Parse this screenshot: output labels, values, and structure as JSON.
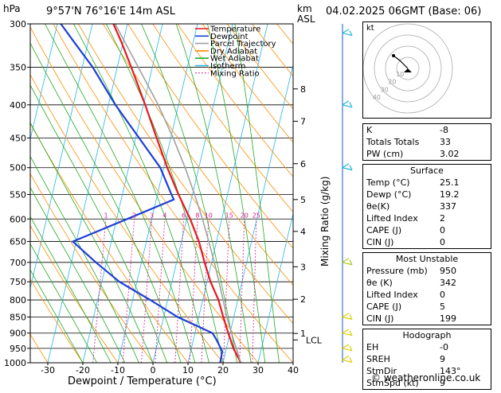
{
  "header": {
    "hpa_unit": "hPa",
    "location": "9°57'N  76°16'E  14m  ASL",
    "km_unit": "km",
    "asl_unit": "ASL",
    "datetime": "04.02.2025  06GMT  (Base: 06)"
  },
  "chart_data": {
    "type": "line",
    "xlabel": "Dewpoint / Temperature (°C)",
    "ylabel_right": "Mixing Ratio (g/kg)",
    "xlim": [
      -35,
      40
    ],
    "ylim_hpa": [
      1000,
      300
    ],
    "x_ticks": [
      "-30",
      "-20",
      "-10",
      "0",
      "10",
      "20",
      "30",
      "40"
    ],
    "pressure_ticks": [
      "300",
      "350",
      "400",
      "450",
      "500",
      "550",
      "600",
      "650",
      "700",
      "750",
      "800",
      "850",
      "900",
      "950",
      "1000"
    ],
    "km_ticks": [
      {
        "km": "8",
        "p": 378
      },
      {
        "km": "7",
        "p": 424
      },
      {
        "km": "6",
        "p": 493
      },
      {
        "km": "5",
        "p": 560
      },
      {
        "km": "4",
        "p": 627
      },
      {
        "km": "3",
        "p": 711
      },
      {
        "km": "2",
        "p": 798
      },
      {
        "km": "1",
        "p": 901
      }
    ],
    "lcl_label": "LCL",
    "lcl_p": 922,
    "mixing_ratio_labels": [
      "1",
      "2",
      "3",
      "4",
      "6",
      "8",
      "10",
      "15",
      "20",
      "25"
    ],
    "legend": [
      {
        "label": "Temperature",
        "color": "#e8191e"
      },
      {
        "label": "Dewpoint",
        "color": "#1e3fd8"
      },
      {
        "label": "Parcel Trajectory",
        "color": "#a0a0a0"
      },
      {
        "label": "Dry Adiabat",
        "color": "#ff8c00"
      },
      {
        "label": "Wet Adiabat",
        "color": "#22aa22"
      },
      {
        "label": "Isotherm",
        "color": "#22b8e8"
      },
      {
        "label": "Mixing Ratio",
        "color": "#e0199a"
      }
    ],
    "series": [
      {
        "name": "Temperature",
        "points": [
          [
            1000,
            25.1
          ],
          [
            950,
            22.0
          ],
          [
            900,
            19.5
          ],
          [
            850,
            17.0
          ],
          [
            800,
            14.5
          ],
          [
            750,
            11.0
          ],
          [
            700,
            8.0
          ],
          [
            650,
            5.0
          ],
          [
            600,
            1.0
          ],
          [
            550,
            -4.0
          ],
          [
            500,
            -9.0
          ],
          [
            450,
            -14.0
          ],
          [
            400,
            -19.5
          ],
          [
            350,
            -26.0
          ],
          [
            320,
            -30.5
          ],
          [
            300,
            -34.0
          ]
        ]
      },
      {
        "name": "Dewpoint",
        "points": [
          [
            1000,
            19.2
          ],
          [
            960,
            19.0
          ],
          [
            920,
            16.5
          ],
          [
            900,
            15.0
          ],
          [
            850,
            4.0
          ],
          [
            800,
            -5.0
          ],
          [
            750,
            -15.0
          ],
          [
            700,
            -23.0
          ],
          [
            650,
            -31.0
          ],
          [
            600,
            -17.0
          ],
          [
            560,
            -5.0
          ],
          [
            550,
            -6.0
          ],
          [
            500,
            -11.0
          ],
          [
            450,
            -19.0
          ],
          [
            400,
            -28.0
          ],
          [
            350,
            -37.0
          ],
          [
            320,
            -44.0
          ],
          [
            300,
            -49.0
          ]
        ]
      },
      {
        "name": "Parcel Trajectory",
        "points": [
          [
            1000,
            25.1
          ],
          [
            922,
            21.5
          ],
          [
            850,
            18.0
          ],
          [
            800,
            15.8
          ],
          [
            750,
            13.4
          ],
          [
            700,
            10.8
          ],
          [
            650,
            7.8
          ],
          [
            600,
            4.5
          ],
          [
            550,
            0.6
          ],
          [
            500,
            -3.9
          ],
          [
            450,
            -9.3
          ],
          [
            400,
            -15.8
          ],
          [
            350,
            -24.0
          ],
          [
            300,
            -33.5
          ]
        ]
      }
    ]
  },
  "panel": {
    "indices": [
      {
        "label": "K",
        "value": "-8"
      },
      {
        "label": "Totals Totals",
        "value": "33"
      },
      {
        "label": "PW (cm)",
        "value": "3.02"
      }
    ],
    "surface_title": "Surface",
    "surface": [
      {
        "label": "Temp (°C)",
        "value": "25.1"
      },
      {
        "label": "Dewp (°C)",
        "value": "19.2"
      },
      {
        "label": "θe(K)",
        "value": "337"
      },
      {
        "label": "Lifted Index",
        "value": "2"
      },
      {
        "label": "CAPE (J)",
        "value": "0"
      },
      {
        "label": "CIN (J)",
        "value": "0"
      }
    ],
    "mu_title": "Most Unstable",
    "most_unstable": [
      {
        "label": "Pressure (mb)",
        "value": "950"
      },
      {
        "label": "θe (K)",
        "value": "342"
      },
      {
        "label": "Lifted Index",
        "value": "0"
      },
      {
        "label": "CAPE (J)",
        "value": "5"
      },
      {
        "label": "CIN (J)",
        "value": "199"
      }
    ],
    "hodo_title": "Hodograph",
    "hodograph": [
      {
        "label": "EH",
        "value": "-0"
      },
      {
        "label": "SREH",
        "value": "9"
      },
      {
        "label": "StmDir",
        "value": "143°"
      },
      {
        "label": "StmSpd (kt)",
        "value": "9"
      }
    ]
  },
  "hodo_inset": {
    "unit": "kt",
    "ring_labels": [
      "10",
      "20",
      "30",
      "40"
    ]
  },
  "copyright": "© weatheronline.co.uk"
}
